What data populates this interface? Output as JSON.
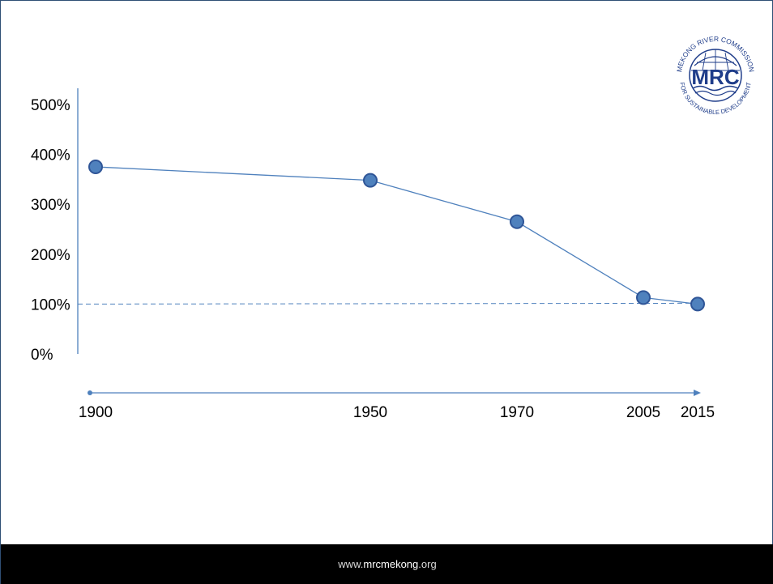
{
  "chart_data": {
    "type": "line",
    "x": [
      "1900",
      "1950",
      "1970",
      "2005",
      "2015"
    ],
    "x_values": [
      1900,
      1950,
      1970,
      2005,
      2015
    ],
    "series": [
      {
        "values": [
          375,
          348,
          265,
          113,
          100
        ]
      }
    ],
    "y_ticks": [
      "500%",
      "400%",
      "300%",
      "200%",
      "100%",
      "0%"
    ],
    "y_tick_values": [
      500,
      400,
      300,
      200,
      100,
      0
    ],
    "ylim": [
      0,
      500
    ],
    "reference_line": {
      "value": 100,
      "style": "dashed"
    },
    "grid": false,
    "colors": {
      "line": "#4f81bd",
      "marker": "#4f81bd",
      "marker_stroke": "#2f5597",
      "axis": "#4f81bd"
    }
  },
  "logo": {
    "arc_text": "MEKONG RIVER COMMISSION",
    "abbrev": "MRC",
    "bottom_text": "FOR SUSTAINABLE DEVELOPMENT"
  },
  "footer": {
    "prefix": "www.",
    "domain": "mrcmekong",
    "suffix": ".org"
  }
}
